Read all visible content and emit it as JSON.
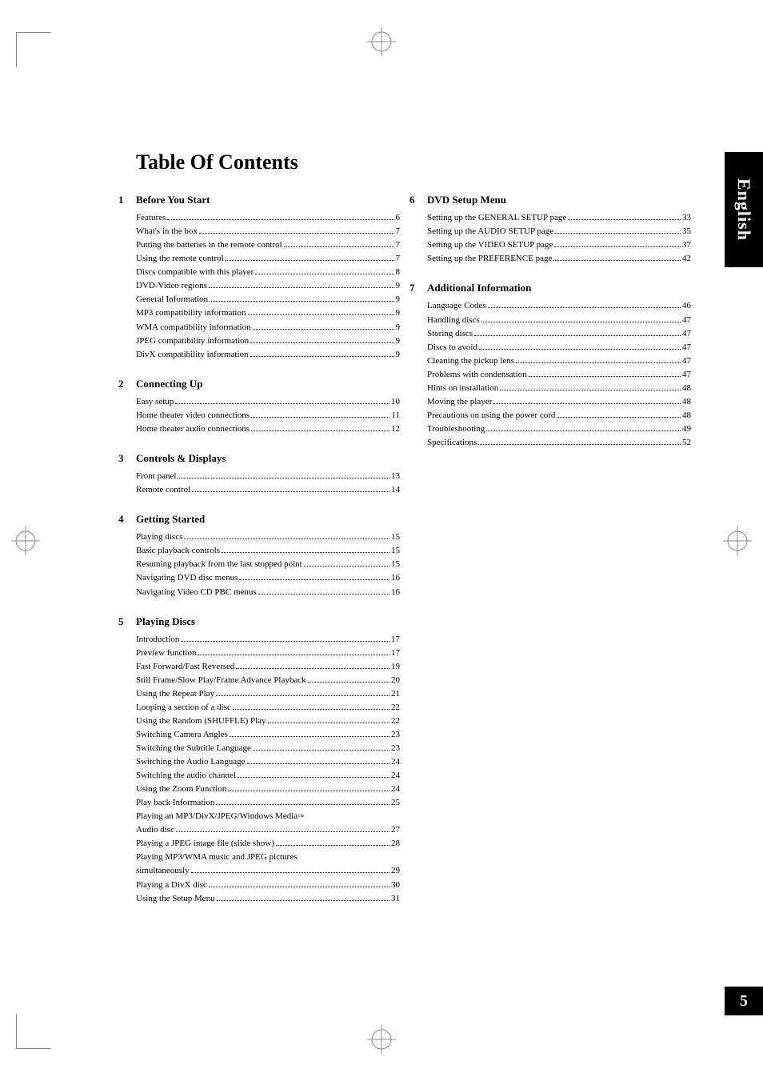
{
  "page_title": "Table Of Contents",
  "side_tab_label": "English",
  "page_number": "5",
  "colors": {
    "background": "#ffffff",
    "text": "#000000",
    "tab_bg": "#000000",
    "tab_text": "#ffffff"
  },
  "typography": {
    "title_fontsize_pt": 20,
    "section_title_fontsize_pt": 10,
    "body_fontsize_pt": 8.5,
    "sidetab_fontsize_pt": 17,
    "pagenum_fontsize_pt": 15
  },
  "columns": [
    {
      "sections": [
        {
          "num": "1",
          "title": "Before You Start",
          "entries": [
            {
              "label": "Features",
              "page": "6"
            },
            {
              "label": "What's in the box",
              "page": "7"
            },
            {
              "label": "Putting the batteries in the remote control",
              "page": "7"
            },
            {
              "label": "Using the remote control",
              "page": "7"
            },
            {
              "label": "Discs compatible with this player",
              "page": "8"
            },
            {
              "label": "DVD-Video regions",
              "page": "9"
            },
            {
              "label": "General Information",
              "page": "9"
            },
            {
              "label": "MP3 compatibility information",
              "page": "9"
            },
            {
              "label": "WMA compatibility information",
              "page": "9"
            },
            {
              "label": "JPEG compatibility information",
              "page": "9"
            },
            {
              "label": "DivX compatibility information",
              "page": "9"
            }
          ]
        },
        {
          "num": "2",
          "title": "Connecting Up",
          "entries": [
            {
              "label": "Easy setup",
              "page": "10"
            },
            {
              "label": "Home theater video connections",
              "page": "11"
            },
            {
              "label": "Home theater audio connections",
              "page": "12"
            }
          ]
        },
        {
          "num": "3",
          "title": "Controls & Displays",
          "entries": [
            {
              "label": "Front panel",
              "page": "13"
            },
            {
              "label": "Remote control",
              "page": "14"
            }
          ]
        },
        {
          "num": "4",
          "title": "Getting Started",
          "entries": [
            {
              "label": "Playing discs",
              "page": "15"
            },
            {
              "label": "Basic playback controls",
              "page": "15"
            },
            {
              "label": "Resuming playback from the last stopped point",
              "page": "15"
            },
            {
              "label": "Navigating DVD disc menus",
              "page": "16"
            },
            {
              "label": "Navigating Video CD PBC menus",
              "page": "16"
            }
          ]
        },
        {
          "num": "5",
          "title": "Playing Discs",
          "entries": [
            {
              "label": "Introduction",
              "page": "17"
            },
            {
              "label": "Preview function",
              "page": "17"
            },
            {
              "label": "Fast Forward/Fast Reversed",
              "page": "19"
            },
            {
              "label": "Still Frame/Slow Play/Frame Advance Playback",
              "page": "20"
            },
            {
              "label": "Using the Repeat Play",
              "page": "21"
            },
            {
              "label": "Looping a section of a disc",
              "page": "22"
            },
            {
              "label": "Using the Random (SHUFFLE) Play",
              "page": "22"
            },
            {
              "label": "Switching Camera Angles",
              "page": "23"
            },
            {
              "label": "Switching the Subtitle Language",
              "page": "23"
            },
            {
              "label": "Switching the Audio Language",
              "page": "24"
            },
            {
              "label": "Switching the audio channel",
              "page": "24"
            },
            {
              "label": "Using the Zoom Function",
              "page": "24"
            },
            {
              "label": "Play back Information",
              "page": "25"
            },
            {
              "label": "Playing an MP3/DivX/JPEG/Windows Media",
              "trademark": "™",
              "continuation": true
            },
            {
              "label": "Audio disc",
              "page": "27"
            },
            {
              "label": "Playing a JPEG image file (slide show)",
              "page": "28"
            },
            {
              "label": "Playing MP3/WMA music and JPEG pictures",
              "continuation": true
            },
            {
              "label": "simultaneously",
              "page": "29"
            },
            {
              "label": "Playing a DivX disc",
              "page": "30"
            },
            {
              "label": "Using the Setup Menu",
              "page": "31"
            }
          ]
        }
      ]
    },
    {
      "sections": [
        {
          "num": "6",
          "title": "DVD Setup Menu",
          "entries": [
            {
              "label": "Setting up the GENERAL SETUP page",
              "page": "33"
            },
            {
              "label": "Setting up the AUDIO SETUP page",
              "page": "35"
            },
            {
              "label": "Setting up the VIDEO SETUP page",
              "page": "37"
            },
            {
              "label": "Setting up the PREFERENCE page",
              "page": "42"
            }
          ]
        },
        {
          "num": "7",
          "title": "Additional Information",
          "entries": [
            {
              "label": "Language Codes",
              "page": "46"
            },
            {
              "label": "Handling discs",
              "page": "47"
            },
            {
              "label": "Storing discs",
              "page": "47"
            },
            {
              "label": "Discs to avoid",
              "page": "47"
            },
            {
              "label": "Cleaning the pickup lens",
              "page": "47"
            },
            {
              "label": "Problems with condensation",
              "page": "47"
            },
            {
              "label": "Hints on installation",
              "page": "48"
            },
            {
              "label": "Moving the player",
              "page": "48"
            },
            {
              "label": "Precautions on using the power cord",
              "page": "48"
            },
            {
              "label": "Troubleshooting",
              "page": "49"
            },
            {
              "label": "Specifications",
              "page": "52"
            }
          ]
        }
      ]
    }
  ]
}
